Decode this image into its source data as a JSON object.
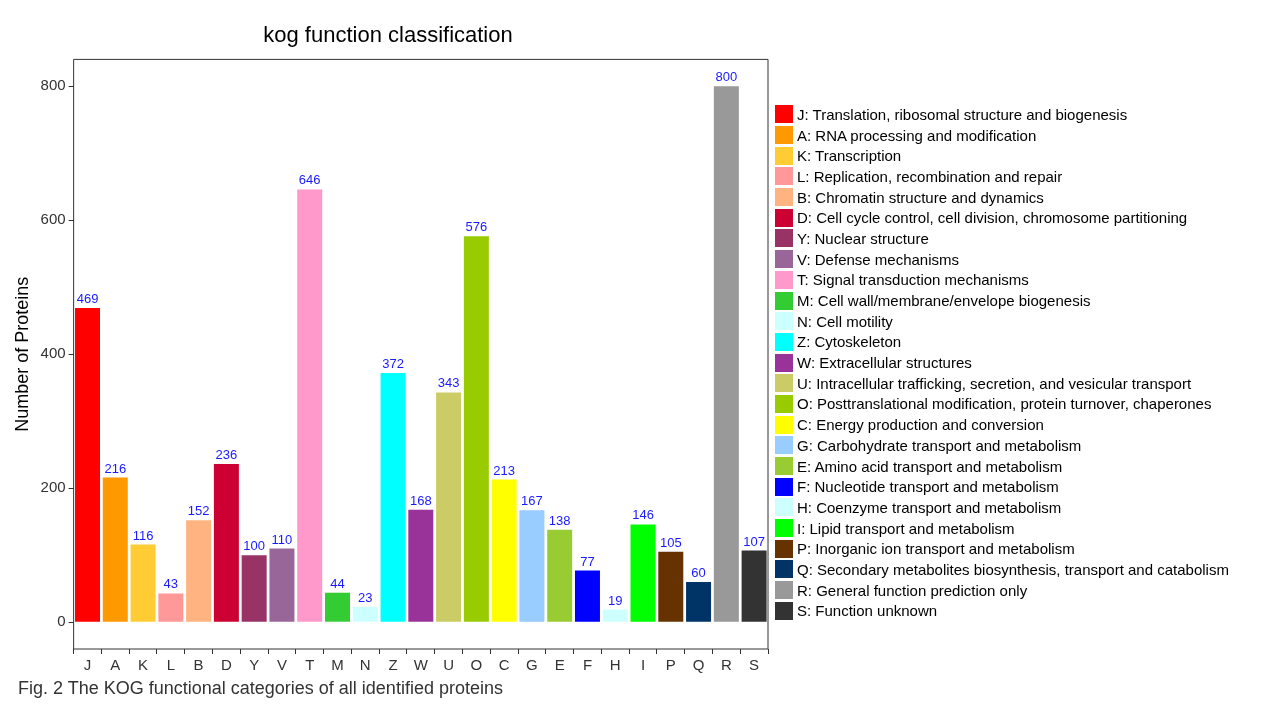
{
  "chart_data": {
    "type": "bar",
    "title": "kog function classification",
    "ylabel": "Number of Proteins",
    "categories": [
      "J",
      "A",
      "K",
      "L",
      "B",
      "D",
      "Y",
      "V",
      "T",
      "M",
      "N",
      "Z",
      "W",
      "U",
      "O",
      "C",
      "G",
      "E",
      "F",
      "H",
      "I",
      "P",
      "Q",
      "R",
      "S"
    ],
    "series": [
      {
        "name": "J: Translation, ribosomal structure and biogenesis",
        "color": "#ff0000",
        "values": [
          469,
          null,
          null,
          null,
          null,
          null,
          null,
          null,
          null,
          null,
          null,
          null,
          null,
          null,
          null,
          null,
          null,
          null,
          null,
          null,
          null,
          null,
          null,
          null,
          null
        ]
      },
      {
        "name": "A: RNA processing and modification",
        "color": "#ff9900",
        "values": [
          null,
          216,
          null,
          null,
          null,
          null,
          null,
          null,
          null,
          null,
          null,
          null,
          null,
          null,
          null,
          null,
          null,
          null,
          null,
          null,
          null,
          null,
          null,
          null,
          null
        ]
      },
      {
        "name": "K: Transcription",
        "color": "#ffcc33",
        "values": [
          null,
          null,
          116,
          null,
          null,
          null,
          null,
          null,
          null,
          null,
          null,
          null,
          null,
          null,
          null,
          null,
          null,
          null,
          null,
          null,
          null,
          null,
          null,
          null,
          null
        ]
      },
      {
        "name": "L: Replication, recombination and repair",
        "color": "#ff9999",
        "values": [
          null,
          null,
          null,
          43,
          null,
          null,
          null,
          null,
          null,
          null,
          null,
          null,
          null,
          null,
          null,
          null,
          null,
          null,
          null,
          null,
          null,
          null,
          null,
          null,
          null
        ]
      },
      {
        "name": "B: Chromatin structure and dynamics",
        "color": "#ffb380",
        "values": [
          null,
          null,
          null,
          null,
          152,
          null,
          null,
          null,
          null,
          null,
          null,
          null,
          null,
          null,
          null,
          null,
          null,
          null,
          null,
          null,
          null,
          null,
          null,
          null,
          null
        ]
      },
      {
        "name": "D: Cell cycle control, cell division, chromosome partitioning",
        "color": "#cc0033",
        "values": [
          null,
          null,
          null,
          null,
          null,
          236,
          null,
          null,
          null,
          null,
          null,
          null,
          null,
          null,
          null,
          null,
          null,
          null,
          null,
          null,
          null,
          null,
          null,
          null,
          null
        ]
      },
      {
        "name": "Y: Nuclear structure",
        "color": "#993366",
        "values": [
          null,
          null,
          null,
          null,
          null,
          null,
          100,
          null,
          null,
          null,
          null,
          null,
          null,
          null,
          null,
          null,
          null,
          null,
          null,
          null,
          null,
          null,
          null,
          null,
          null
        ]
      },
      {
        "name": "V: Defense mechanisms",
        "color": "#996699",
        "values": [
          null,
          null,
          null,
          null,
          null,
          null,
          null,
          110,
          null,
          null,
          null,
          null,
          null,
          null,
          null,
          null,
          null,
          null,
          null,
          null,
          null,
          null,
          null,
          null,
          null
        ]
      },
      {
        "name": "T: Signal transduction mechanisms",
        "color": "#ff99cc",
        "values": [
          null,
          null,
          null,
          null,
          null,
          null,
          null,
          null,
          646,
          null,
          null,
          null,
          null,
          null,
          null,
          null,
          null,
          null,
          null,
          null,
          null,
          null,
          null,
          null,
          null
        ]
      },
      {
        "name": "M: Cell wall/membrane/envelope biogenesis",
        "color": "#33cc33",
        "values": [
          null,
          null,
          null,
          null,
          null,
          null,
          null,
          null,
          null,
          44,
          null,
          null,
          null,
          null,
          null,
          null,
          null,
          null,
          null,
          null,
          null,
          null,
          null,
          null,
          null
        ]
      },
      {
        "name": "N: Cell motility",
        "color": "#ccffff",
        "values": [
          null,
          null,
          null,
          null,
          null,
          null,
          null,
          null,
          null,
          null,
          23,
          null,
          null,
          null,
          null,
          null,
          null,
          null,
          null,
          null,
          null,
          null,
          null,
          null,
          null
        ]
      },
      {
        "name": "Z: Cytoskeleton",
        "color": "#00ffff",
        "values": [
          null,
          null,
          null,
          null,
          null,
          null,
          null,
          null,
          null,
          null,
          null,
          372,
          null,
          null,
          null,
          null,
          null,
          null,
          null,
          null,
          null,
          null,
          null,
          null,
          null
        ]
      },
      {
        "name": "W: Extracellular structures",
        "color": "#993399",
        "values": [
          null,
          null,
          null,
          null,
          null,
          null,
          null,
          null,
          null,
          null,
          null,
          null,
          168,
          null,
          null,
          null,
          null,
          null,
          null,
          null,
          null,
          null,
          null,
          null,
          null
        ]
      },
      {
        "name": "U: Intracellular trafficking, secretion, and vesicular transport",
        "color": "#cccc66",
        "values": [
          null,
          null,
          null,
          null,
          null,
          null,
          null,
          null,
          null,
          null,
          null,
          null,
          null,
          343,
          null,
          null,
          null,
          null,
          null,
          null,
          null,
          null,
          null,
          null,
          null
        ]
      },
      {
        "name": "O: Posttranslational modification, protein turnover, chaperones",
        "color": "#99cc00",
        "values": [
          null,
          null,
          null,
          null,
          null,
          null,
          null,
          null,
          null,
          null,
          null,
          null,
          null,
          null,
          576,
          null,
          null,
          null,
          null,
          null,
          null,
          null,
          null,
          null,
          null
        ]
      },
      {
        "name": "C: Energy production and conversion",
        "color": "#ffff00",
        "values": [
          null,
          null,
          null,
          null,
          null,
          null,
          null,
          null,
          null,
          null,
          null,
          null,
          null,
          null,
          null,
          213,
          null,
          null,
          null,
          null,
          null,
          null,
          null,
          null,
          null
        ]
      },
      {
        "name": "G: Carbohydrate transport and metabolism",
        "color": "#99ccff",
        "values": [
          null,
          null,
          null,
          null,
          null,
          null,
          null,
          null,
          null,
          null,
          null,
          null,
          null,
          null,
          null,
          null,
          167,
          null,
          null,
          null,
          null,
          null,
          null,
          null,
          null
        ]
      },
      {
        "name": "E: Amino acid transport and metabolism",
        "color": "#99cc33",
        "values": [
          null,
          null,
          null,
          null,
          null,
          null,
          null,
          null,
          null,
          null,
          null,
          null,
          null,
          null,
          null,
          null,
          null,
          138,
          null,
          null,
          null,
          null,
          null,
          null,
          null
        ]
      },
      {
        "name": "F: Nucleotide transport and metabolism",
        "color": "#0000ff",
        "values": [
          null,
          null,
          null,
          null,
          null,
          null,
          null,
          null,
          null,
          null,
          null,
          null,
          null,
          null,
          null,
          null,
          null,
          null,
          77,
          null,
          null,
          null,
          null,
          null,
          null
        ]
      },
      {
        "name": "H: Coenzyme transport and metabolism",
        "color": "#ccfffe",
        "values": [
          null,
          null,
          null,
          null,
          null,
          null,
          null,
          null,
          null,
          null,
          null,
          null,
          null,
          null,
          null,
          null,
          null,
          null,
          null,
          19,
          null,
          null,
          null,
          null,
          null
        ]
      },
      {
        "name": "I: Lipid transport and metabolism",
        "color": "#00ff00",
        "values": [
          null,
          null,
          null,
          null,
          null,
          null,
          null,
          null,
          null,
          null,
          null,
          null,
          null,
          null,
          null,
          null,
          null,
          null,
          null,
          null,
          146,
          null,
          null,
          null,
          null
        ]
      },
      {
        "name": "P: Inorganic ion transport and metabolism",
        "color": "#663300",
        "values": [
          null,
          null,
          null,
          null,
          null,
          null,
          null,
          null,
          null,
          null,
          null,
          null,
          null,
          null,
          null,
          null,
          null,
          null,
          null,
          null,
          null,
          105,
          null,
          null,
          null
        ]
      },
      {
        "name": "Q: Secondary metabolites biosynthesis, transport and catabolism",
        "color": "#003366",
        "values": [
          null,
          null,
          null,
          null,
          null,
          null,
          null,
          null,
          null,
          null,
          null,
          null,
          null,
          null,
          null,
          null,
          null,
          null,
          null,
          null,
          null,
          null,
          60,
          null,
          null
        ]
      },
      {
        "name": "R: General function prediction only",
        "color": "#999999",
        "values": [
          null,
          null,
          null,
          null,
          null,
          null,
          null,
          null,
          null,
          null,
          null,
          null,
          null,
          null,
          null,
          null,
          null,
          null,
          null,
          null,
          null,
          null,
          null,
          800,
          null
        ]
      },
      {
        "name": "S: Function unknown",
        "color": "#333333",
        "values": [
          null,
          null,
          null,
          null,
          null,
          null,
          null,
          null,
          null,
          null,
          null,
          null,
          null,
          null,
          null,
          null,
          null,
          null,
          null,
          null,
          null,
          null,
          null,
          null,
          107
        ]
      }
    ],
    "ylim": [
      -40,
      840
    ],
    "yticks": [
      0,
      200,
      400,
      600,
      800
    ],
    "grid": false,
    "legend": "right",
    "data_labels": true,
    "annotations": [
      "Fig. 2  The KOG functional categories of all identified proteins"
    ]
  }
}
